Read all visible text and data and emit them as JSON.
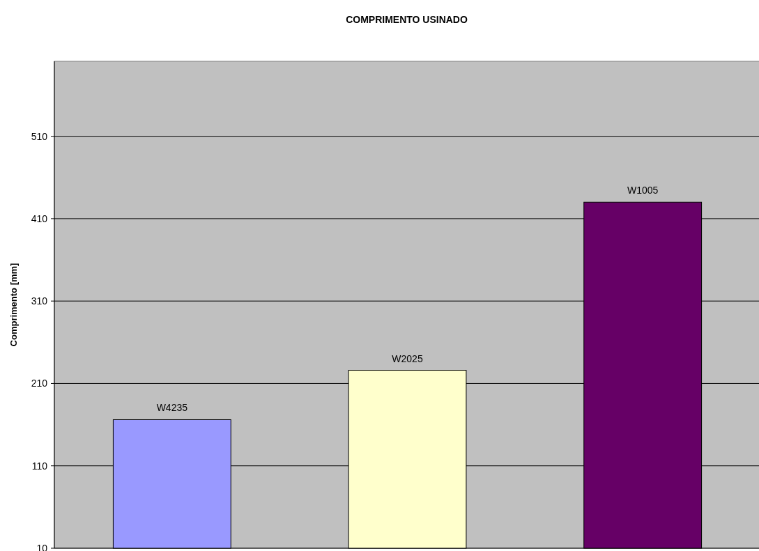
{
  "chart_data": {
    "type": "bar",
    "title": "COMPRIMENTO USINADO",
    "ylabel": "Comprimento [mm]",
    "categories": [
      "W4235",
      "W2025",
      "W1005"
    ],
    "values": [
      166,
      226,
      430
    ],
    "colors": [
      "#9999ff",
      "#ffffcc",
      "#660066"
    ],
    "ylim": [
      10,
      601
    ],
    "yticks": [
      10,
      110,
      210,
      310,
      410,
      510
    ],
    "grid": "y"
  }
}
